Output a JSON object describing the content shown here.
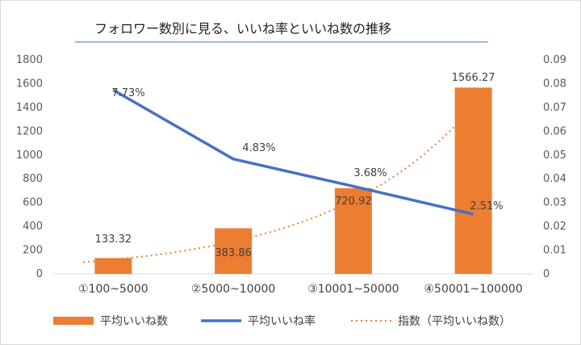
{
  "chart_data": {
    "type": "bar",
    "title": "フォロワー数別に見る、いいね率といいね数の推移",
    "categories": [
      "①100~5000",
      "②5000~10000",
      "③10001~50000",
      "④50001~100000"
    ],
    "series": [
      {
        "name": "平均いいね数",
        "type": "bar",
        "axis": "left",
        "color": "#ed7d31",
        "values": [
          133.32,
          383.86,
          720.92,
          1566.27
        ],
        "labels": [
          "133.32",
          "383.86",
          "720.92",
          "1566.27"
        ]
      },
      {
        "name": "平均いいね率",
        "type": "line",
        "axis": "right",
        "color": "#4472c4",
        "values": [
          0.0773,
          0.0483,
          0.0368,
          0.0251
        ],
        "labels": [
          "7.73%",
          "4.83%",
          "3.68%",
          "2.51%"
        ]
      },
      {
        "name": "指数（平均いいね数）",
        "type": "trendline-exponential",
        "axis": "left",
        "color": "#ed7d31",
        "dashed": true
      }
    ],
    "ylim": [
      0,
      1800
    ],
    "yticks": [
      "0",
      "200",
      "400",
      "600",
      "800",
      "1000",
      "1200",
      "1400",
      "1600",
      "1800"
    ],
    "y2lim": [
      0,
      0.09
    ],
    "y2ticks": [
      "0",
      "0.01",
      "0.02",
      "0.03",
      "0.04",
      "0.05",
      "0.06",
      "0.07",
      "0.08",
      "0.09"
    ],
    "legend": "bottom",
    "grid": false
  }
}
